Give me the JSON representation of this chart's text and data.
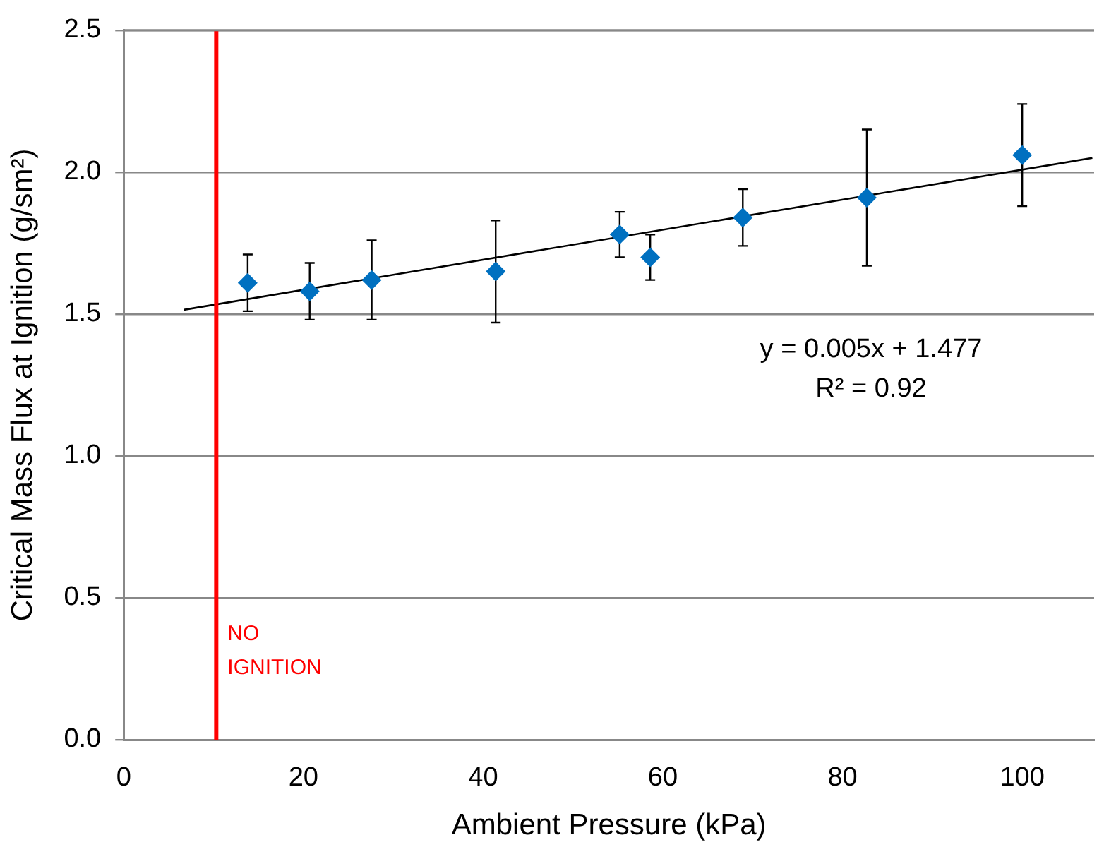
{
  "chart_data": {
    "type": "scatter",
    "xlabel": "Ambient Pressure (kPa)",
    "ylabel": "Critical Mass Flux at Ignition (g/sm²)",
    "xlim": [
      0,
      108
    ],
    "xticks": [
      0,
      20,
      40,
      60,
      80,
      100
    ],
    "ylim": [
      0,
      2.5
    ],
    "yticks": [
      {
        "value": 0,
        "label": "0.0"
      },
      0.5,
      {
        "value": 1,
        "label": "1.0"
      },
      1.5,
      {
        "value": 2,
        "label": "2.0"
      },
      2.5
    ],
    "grid": "y",
    "legend": false,
    "marker": "diamond",
    "series": [
      {
        "type": "scatter",
        "color": "#0070c0",
        "x": [
          13.8,
          20.7,
          27.6,
          41.4,
          55.2,
          58.6,
          68.9,
          82.7,
          100
        ],
        "values": [
          1.61,
          1.58,
          1.62,
          1.65,
          1.78,
          1.7,
          1.84,
          1.91,
          2.06
        ],
        "errors": [
          0.1,
          0.1,
          0.14,
          0.18,
          0.08,
          0.08,
          0.1,
          0.24,
          0.18
        ]
      },
      {
        "type": "line",
        "color": "#000000",
        "x": [
          6.7,
          107.8
        ],
        "values": [
          1.515,
          2.05
        ],
        "marker": "none"
      }
    ],
    "ref_lines": [
      {
        "axis": "x",
        "value": 10.3,
        "label": "NO IGNITION",
        "color": "#ff0000"
      }
    ],
    "annotations": [
      "y = 0.005x + 1.477",
      "R² = 0.92"
    ]
  }
}
